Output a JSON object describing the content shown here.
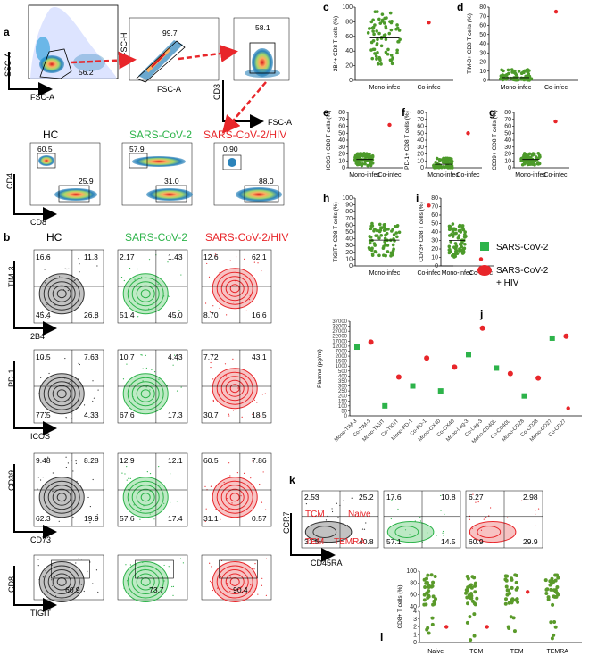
{
  "panel_letters": {
    "a": "a",
    "b": "b",
    "c": "c",
    "d": "d",
    "e": "e",
    "f": "f",
    "g": "g",
    "h": "h",
    "i": "i",
    "j": "j",
    "k": "k",
    "l": "l"
  },
  "gating": {
    "g1": {
      "x": "FSC-A",
      "y": "SSC-A",
      "value": "56.2"
    },
    "g2": {
      "x": "FSC-A",
      "y": "FSC-H",
      "value": "99.7"
    },
    "g3": {
      "x": "FSC-A",
      "y": "CD3",
      "value": "58.1"
    }
  },
  "groups": {
    "hc": "HC",
    "sars": "SARS-CoV-2",
    "hiv": "SARS-CoV-2/HIV"
  },
  "colors": {
    "hc": "#333333",
    "sars": "#2db34a",
    "hiv": "#e8262a",
    "arrow": "#e8262a",
    "heat_hi": "#d7191c",
    "heat_lo": "#2b83ba"
  },
  "cd4cd8": {
    "x": "CD8",
    "y": "CD4",
    "hc": {
      "top": "60.5",
      "bot": "25.9"
    },
    "sars": {
      "top": "57.9",
      "bot": "31.0"
    },
    "hiv": {
      "top": "0.90",
      "bot": "88.0"
    }
  },
  "rows": [
    {
      "x": "2B4",
      "y": "TIM-3",
      "hc": [
        "16.6",
        "11.3",
        "45.4",
        "26.8"
      ],
      "sars": [
        "2.17",
        "1.43",
        "51.4",
        "45.0"
      ],
      "hiv": [
        "12.6",
        "62.1",
        "8.70",
        "16.6"
      ]
    },
    {
      "x": "ICOS",
      "y": "PD-1",
      "hc": [
        "10.5",
        "7.63",
        "77.5",
        "4.33"
      ],
      "sars": [
        "10.7",
        "4.43",
        "67.6",
        "17.3"
      ],
      "hiv": [
        "7.72",
        "43.1",
        "30.7",
        "18.5"
      ]
    },
    {
      "x": "CD73",
      "y": "CD39",
      "hc": [
        "9.48",
        "8.28",
        "62.3",
        "19.9"
      ],
      "sars": [
        "12.9",
        "12.1",
        "57.6",
        "17.4"
      ],
      "hiv": [
        "60.5",
        "7.86",
        "31.1",
        "0.57"
      ]
    },
    {
      "x": "TIGIT",
      "y": "CD8",
      "hc": [
        "60.9"
      ],
      "sars": [
        "73.7"
      ],
      "hiv": [
        "90.4"
      ]
    }
  ],
  "scatter_panels": [
    {
      "id": "c",
      "ylabel": "2B4+ CD8 T cells (%)",
      "ymax": 100,
      "ticks": [
        0,
        20,
        40,
        60,
        80,
        100
      ],
      "median": 58,
      "co": 79
    },
    {
      "id": "d",
      "ylabel": "TIM-3+ CD8 T cells (%)",
      "ymax": 80,
      "ticks": [
        0,
        10,
        20,
        30,
        40,
        50,
        60,
        70,
        80
      ],
      "median": 3,
      "co": 75
    },
    {
      "id": "e",
      "ylabel": "ICOS+ CD8 T cells (%)",
      "ymax": 80,
      "ticks": [
        0,
        10,
        20,
        30,
        40,
        50,
        60,
        70,
        80
      ],
      "median": 12,
      "co": 62
    },
    {
      "id": "f",
      "ylabel": "PD-1+ CD8 T cells (%)",
      "ymax": 80,
      "ticks": [
        0,
        10,
        20,
        30,
        40,
        50,
        60,
        70,
        80
      ],
      "median": 5,
      "co": 50
    },
    {
      "id": "g",
      "ylabel": "CD39+ CD8 T cells (%)",
      "ymax": 80,
      "ticks": [
        0,
        10,
        20,
        30,
        40,
        50,
        60,
        70,
        80
      ],
      "median": 12,
      "co": 67
    },
    {
      "id": "h",
      "ylabel": "TIGIT+ CD8 T cells (%)",
      "ymax": 100,
      "ticks": [
        0,
        10,
        20,
        30,
        40,
        50,
        60,
        70,
        80,
        90,
        100
      ],
      "median": 38,
      "co": 89
    },
    {
      "id": "i",
      "ylabel": "CD73+ CD8 T cells (%)",
      "ymax": 80,
      "ticks": [
        0,
        10,
        20,
        30,
        40,
        50,
        60,
        70,
        80
      ],
      "median": 30,
      "co": 8
    }
  ],
  "scatter_xlabels": {
    "mono": "Mono-infec",
    "co": "Co-infec"
  },
  "legend": {
    "sars": "SARS-CoV-2",
    "hiv_line1": "SARS-CoV-2",
    "hiv_line2": "+ HIV"
  },
  "chart_data": {
    "type": "scatter",
    "ylabel": "Plasma (pg/ml)",
    "categories": [
      "Mono-TIM-3",
      "Co-TIM-3",
      "Mono-TIGIT",
      "Co-TIGIT",
      "Mono-PD-1",
      "Co-PD-1",
      "Mono-OX40",
      "Co-OX40",
      "Mono-Lag-3",
      "Co-Lag-3",
      "Mono-CD40L",
      "Co-CD40L",
      "Mono-CD28",
      "Co-CD28",
      "Mono-CD27",
      "Co-CD27"
    ],
    "yticks": [
      "0",
      "50",
      "100",
      "150",
      "200",
      "250",
      "300",
      "350",
      "400",
      "500",
      "1000",
      "1500",
      "2000",
      "7000",
      "12000",
      "17000",
      "22000",
      "27000",
      "32000",
      "37000"
    ],
    "series": [
      {
        "name": "SARS-CoV-2",
        "values": [
          11000,
          null,
          100,
          null,
          300,
          null,
          250,
          null,
          3500,
          null,
          800,
          null,
          200,
          null,
          20000,
          null
        ]
      },
      {
        "name": "SARS-CoV-2 + HIV",
        "values": [
          null,
          16000,
          null,
          390,
          null,
          1800,
          null,
          900,
          null,
          30000,
          null,
          450,
          null,
          380,
          null,
          22000
        ]
      }
    ]
  },
  "k": {
    "x": "CD45RA",
    "y": "CCR7",
    "labels": {
      "tcm": "TCM",
      "naive": "Naive",
      "tem": "TEM",
      "temra": "TEMRA"
    },
    "hc": [
      "2.53",
      "25.2",
      "31.5",
      "40.8"
    ],
    "sars": [
      "17.6",
      "10.8",
      "57.1",
      "14.5"
    ],
    "hiv": [
      "6.27",
      "2.98",
      "60.9",
      "29.9"
    ]
  },
  "l": {
    "ylabel": "CD8+ T cells (%)",
    "categories": [
      "Naive",
      "TCM",
      "TEM",
      "TEMRA"
    ],
    "top_ticks": [
      "40",
      "60",
      "80",
      "100"
    ],
    "bot_ticks": [
      "0",
      "1",
      "2",
      "3",
      "4"
    ],
    "co_values": [
      2,
      2,
      65,
      30
    ]
  }
}
